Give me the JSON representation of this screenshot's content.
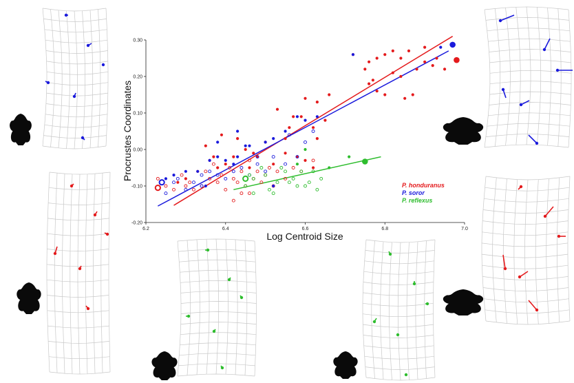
{
  "chart_data": {
    "type": "scatter",
    "xlabel": "Log Centroid Size",
    "ylabel": "Procrustes Coordinates",
    "xlim": [
      6.2,
      7.0
    ],
    "ylim": [
      -0.2,
      0.3
    ],
    "xticks": [
      "6.2",
      "6.4",
      "6.6",
      "6.8",
      "7.0"
    ],
    "yticks": [
      "-0.20",
      "-0.10",
      "0.00",
      "0.10",
      "0.20",
      "0.30"
    ],
    "grid": false,
    "legend_position": "bottom-right",
    "series": [
      {
        "name": "P. honduranus",
        "color": "#e41a1c",
        "fit": [
          [
            6.27,
            -0.153
          ],
          [
            6.97,
            0.31
          ]
        ],
        "mean": [
          6.98,
          0.245
        ],
        "mean_open": [
          6.23,
          -0.105
        ],
        "filled": [
          [
            6.72,
            0.26
          ],
          [
            6.75,
            0.22
          ],
          [
            6.76,
            0.24
          ],
          [
            6.77,
            0.19
          ],
          [
            6.78,
            0.25
          ],
          [
            6.8,
            0.26
          ],
          [
            6.82,
            0.27
          ],
          [
            6.84,
            0.25
          ],
          [
            6.86,
            0.27
          ],
          [
            6.88,
            0.22
          ],
          [
            6.9,
            0.24
          ],
          [
            6.92,
            0.23
          ],
          [
            6.85,
            0.14
          ],
          [
            6.87,
            0.15
          ],
          [
            6.8,
            0.15
          ],
          [
            6.78,
            0.16
          ],
          [
            6.84,
            0.2
          ],
          [
            6.9,
            0.28
          ],
          [
            6.93,
            0.25
          ],
          [
            6.76,
            0.18
          ],
          [
            6.82,
            0.21
          ],
          [
            6.95,
            0.22
          ],
          [
            6.6,
            0.14
          ],
          [
            6.63,
            0.13
          ],
          [
            6.66,
            0.15
          ],
          [
            6.59,
            0.09
          ],
          [
            6.57,
            0.09
          ],
          [
            6.56,
            0.06
          ],
          [
            6.53,
            0.11
          ],
          [
            6.55,
            0.03
          ],
          [
            6.62,
            0.06
          ],
          [
            6.65,
            0.08
          ],
          [
            6.63,
            0.03
          ],
          [
            6.5,
            0.02
          ],
          [
            6.48,
            -0.02
          ],
          [
            6.45,
            0.0
          ],
          [
            6.47,
            -0.01
          ],
          [
            6.42,
            -0.02
          ],
          [
            6.4,
            -0.04
          ],
          [
            6.38,
            -0.05
          ],
          [
            6.36,
            -0.03
          ],
          [
            6.33,
            -0.06
          ],
          [
            6.3,
            -0.08
          ],
          [
            6.28,
            -0.09
          ],
          [
            6.35,
            0.01
          ],
          [
            6.37,
            -0.02
          ],
          [
            6.39,
            0.04
          ],
          [
            6.43,
            0.03
          ],
          [
            6.46,
            -0.05
          ],
          [
            6.52,
            -0.04
          ],
          [
            6.55,
            -0.01
          ],
          [
            6.58,
            -0.02
          ],
          [
            6.6,
            -0.03
          ],
          [
            6.62,
            -0.05
          ]
        ],
        "open": [
          [
            6.23,
            -0.08
          ],
          [
            6.25,
            -0.1
          ],
          [
            6.27,
            -0.11
          ],
          [
            6.29,
            -0.07
          ],
          [
            6.31,
            -0.09
          ],
          [
            6.32,
            -0.11
          ],
          [
            6.34,
            -0.1
          ],
          [
            6.36,
            -0.08
          ],
          [
            6.38,
            -0.09
          ],
          [
            6.39,
            -0.07
          ],
          [
            6.4,
            -0.11
          ],
          [
            6.41,
            -0.05
          ],
          [
            6.42,
            -0.08
          ],
          [
            6.43,
            -0.09
          ],
          [
            6.44,
            -0.06
          ],
          [
            6.45,
            -0.1
          ],
          [
            6.46,
            -0.12
          ],
          [
            6.47,
            -0.08
          ],
          [
            6.48,
            -0.06
          ],
          [
            6.49,
            -0.09
          ],
          [
            6.5,
            -0.07
          ],
          [
            6.51,
            -0.05
          ],
          [
            6.52,
            -0.1
          ],
          [
            6.53,
            -0.06
          ],
          [
            6.55,
            -0.08
          ],
          [
            6.57,
            -0.05
          ],
          [
            6.59,
            -0.06
          ],
          [
            6.62,
            -0.03
          ],
          [
            6.42,
            -0.14
          ],
          [
            6.44,
            -0.12
          ],
          [
            6.35,
            -0.06
          ],
          [
            6.37,
            -0.04
          ],
          [
            6.46,
            -0.03
          ],
          [
            6.3,
            -0.1
          ]
        ]
      },
      {
        "name": "P. soror",
        "color": "#1a1adc",
        "fit": [
          [
            6.23,
            -0.155
          ],
          [
            6.96,
            0.27
          ]
        ],
        "mean": [
          6.97,
          0.287
        ],
        "mean_open": [
          6.24,
          -0.09
        ],
        "filled": [
          [
            6.72,
            0.26
          ],
          [
            6.94,
            0.28
          ],
          [
            6.63,
            0.09
          ],
          [
            6.6,
            0.08
          ],
          [
            6.58,
            0.09
          ],
          [
            6.55,
            0.05
          ],
          [
            6.52,
            0.03
          ],
          [
            6.5,
            0.02
          ],
          [
            6.45,
            0.01
          ],
          [
            6.43,
            -0.02
          ],
          [
            6.4,
            -0.03
          ],
          [
            6.38,
            -0.02
          ],
          [
            6.36,
            -0.03
          ],
          [
            6.33,
            -0.06
          ],
          [
            6.3,
            -0.06
          ],
          [
            6.27,
            -0.07
          ],
          [
            6.25,
            -0.08
          ],
          [
            6.42,
            -0.04
          ],
          [
            6.35,
            -0.1
          ],
          [
            6.38,
            0.02
          ],
          [
            6.43,
            0.05
          ],
          [
            6.46,
            0.01
          ],
          [
            6.52,
            -0.1
          ]
        ],
        "open": [
          [
            6.25,
            -0.12
          ],
          [
            6.27,
            -0.09
          ],
          [
            6.3,
            -0.11
          ],
          [
            6.32,
            -0.09
          ],
          [
            6.34,
            -0.07
          ],
          [
            6.36,
            -0.06
          ],
          [
            6.38,
            -0.07
          ],
          [
            6.4,
            -0.08
          ],
          [
            6.42,
            -0.06
          ],
          [
            6.44,
            -0.05
          ],
          [
            6.46,
            -0.07
          ],
          [
            6.48,
            -0.04
          ],
          [
            6.5,
            -0.06
          ],
          [
            6.52,
            -0.02
          ],
          [
            6.55,
            -0.04
          ],
          [
            6.58,
            -0.02
          ],
          [
            6.6,
            0.02
          ],
          [
            6.62,
            0.05
          ],
          [
            6.56,
            0.04
          ],
          [
            6.48,
            -0.02
          ],
          [
            6.34,
            -0.1
          ],
          [
            6.28,
            -0.08
          ]
        ]
      },
      {
        "name": "P. reflexus",
        "color": "#2ebd2e",
        "fit": [
          [
            6.42,
            -0.11
          ],
          [
            6.79,
            -0.02
          ]
        ],
        "mean": [
          6.75,
          -0.033
        ],
        "mean_open": [
          6.45,
          -0.08
        ],
        "filled": [
          [
            6.6,
            0.0
          ],
          [
            6.66,
            -0.05
          ],
          [
            6.58,
            -0.04
          ],
          [
            6.71,
            -0.02
          ]
        ],
        "open": [
          [
            6.45,
            -0.1
          ],
          [
            6.47,
            -0.08
          ],
          [
            6.49,
            -0.05
          ],
          [
            6.5,
            -0.07
          ],
          [
            6.51,
            -0.11
          ],
          [
            6.53,
            -0.09
          ],
          [
            6.55,
            -0.06
          ],
          [
            6.57,
            -0.08
          ],
          [
            6.59,
            -0.06
          ],
          [
            6.6,
            -0.1
          ],
          [
            6.61,
            -0.09
          ],
          [
            6.63,
            -0.11
          ],
          [
            6.47,
            -0.12
          ],
          [
            6.52,
            -0.12
          ],
          [
            6.56,
            -0.09
          ],
          [
            6.58,
            -0.1
          ],
          [
            6.54,
            -0.05
          ],
          [
            6.46,
            -0.07
          ],
          [
            6.62,
            -0.06
          ],
          [
            6.64,
            -0.08
          ]
        ]
      }
    ]
  },
  "deformation_panels": [
    {
      "name": "grid-panel-top-left",
      "color": "#1a1adc"
    },
    {
      "name": "grid-panel-middle-left",
      "color": "#e41a1c"
    },
    {
      "name": "grid-panel-bottom-center-left",
      "color": "#2ebd2e"
    },
    {
      "name": "grid-panel-bottom-center-right",
      "color": "#2ebd2e"
    },
    {
      "name": "grid-panel-top-right",
      "color": "#1a1adc"
    },
    {
      "name": "grid-panel-middle-right",
      "color": "#e41a1c"
    }
  ]
}
